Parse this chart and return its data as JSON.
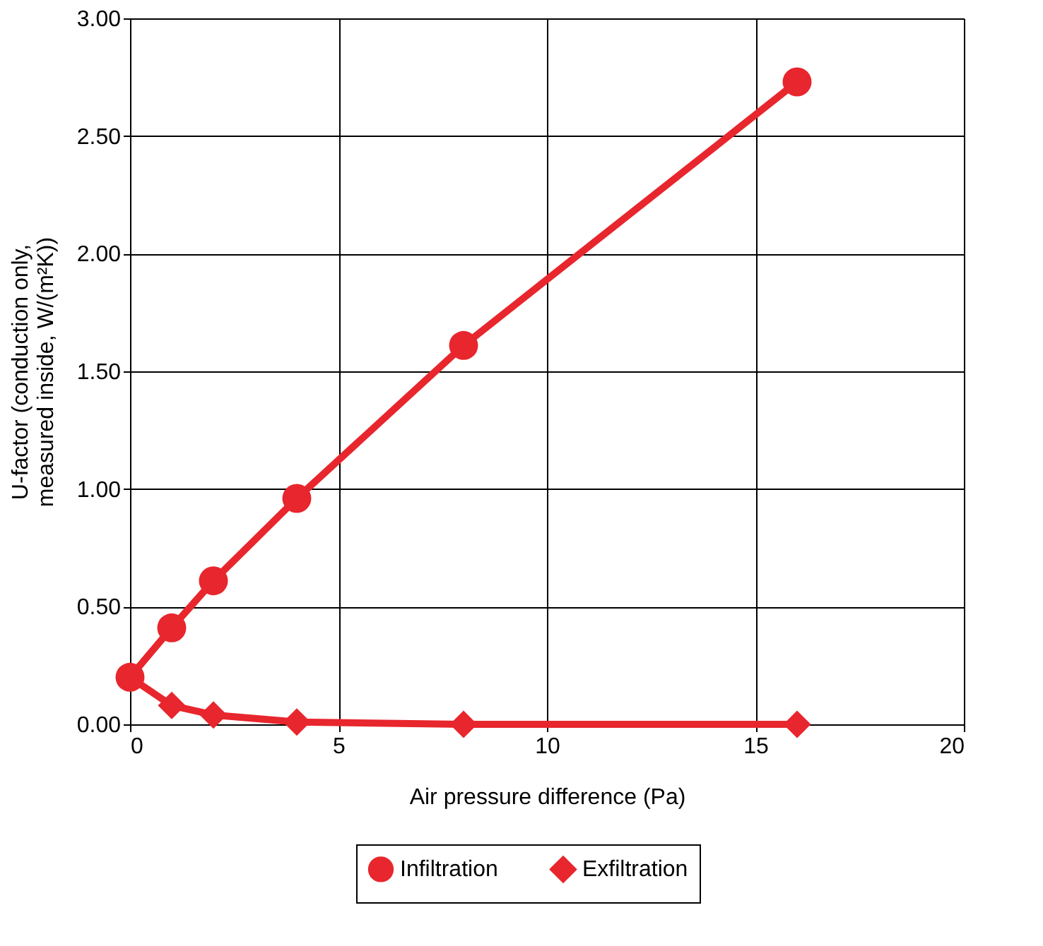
{
  "chart_data": {
    "type": "line",
    "xlabel": "Air pressure difference (Pa)",
    "ylabel": "U-factor (conduction only, measured inside, W/(m²K))",
    "x": [
      0,
      1,
      2,
      4,
      8,
      16
    ],
    "series": [
      {
        "name": "Infiltration",
        "color": "#e8262d",
        "marker": "circle",
        "values": [
          0.2,
          0.41,
          0.61,
          0.96,
          1.61,
          2.73
        ]
      },
      {
        "name": "Exfiltration",
        "color": "#e8262d",
        "marker": "diamond",
        "values": [
          0.2,
          0.08,
          0.04,
          0.01,
          0.0,
          0.0
        ]
      }
    ],
    "xlim": [
      0,
      20
    ],
    "xticks": [
      0,
      5,
      10,
      15,
      20
    ],
    "ylim": [
      0,
      3
    ],
    "yticks": [
      {
        "value": 0,
        "label": "0.00"
      },
      {
        "value": 0.5,
        "label": "0.50"
      },
      {
        "value": 1,
        "label": "1.00"
      },
      {
        "value": 1.5,
        "label": "1.50"
      },
      {
        "value": 2,
        "label": "2.00"
      },
      {
        "value": 2.5,
        "label": "2.50"
      },
      {
        "value": 3,
        "label": "3.00"
      }
    ],
    "grid": true,
    "legend": "bottom",
    "line_style": "solid"
  }
}
